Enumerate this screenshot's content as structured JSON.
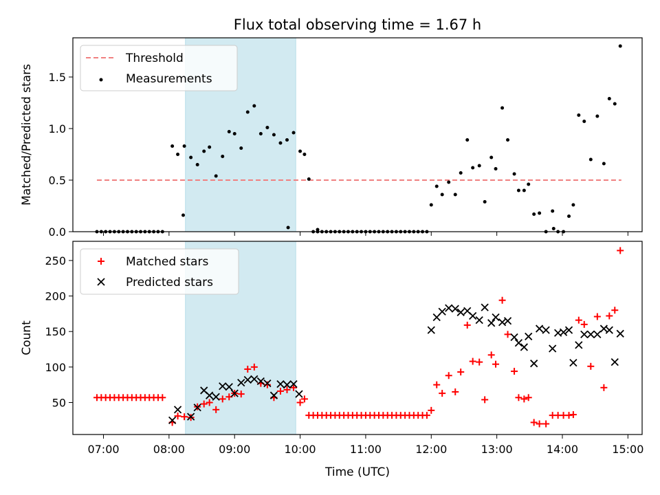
{
  "chart_data": [
    {
      "type": "scatter",
      "title": "Flux total observing time = 1.67 h",
      "xlabel": "",
      "ylabel": "Matched/Predicted stars",
      "xlim": [
        "06:32",
        "15:13"
      ],
      "ylim": [
        0,
        1.88
      ],
      "yticks": [
        0.0,
        0.5,
        1.0,
        1.5
      ],
      "yticklabels": [
        "0.0",
        "0.5",
        "1.0",
        "1.5"
      ],
      "xticks": [
        "07:00",
        "08:00",
        "09:00",
        "10:00",
        "11:00",
        "12:00",
        "13:00",
        "14:00",
        "15:00"
      ],
      "legend_position": "top-left",
      "shaded_span": {
        "start": "08:15",
        "end": "09:56",
        "color": "#add8e6"
      },
      "series": [
        {
          "name": "Threshold",
          "kind": "dashed-line",
          "color": "#f08080",
          "x": [
            "06:54",
            "14:54"
          ],
          "y": [
            0.5,
            0.5
          ]
        },
        {
          "name": "Measurements",
          "kind": "points",
          "color": "#000000",
          "x": [
            "06:54",
            "06:58",
            "07:02",
            "07:06",
            "07:10",
            "07:14",
            "07:18",
            "07:22",
            "07:26",
            "07:30",
            "07:34",
            "07:38",
            "07:42",
            "07:46",
            "07:50",
            "07:54",
            "08:03",
            "08:08",
            "08:14",
            "08:20",
            "08:26",
            "08:32",
            "08:37",
            "08:43",
            "08:49",
            "08:55",
            "09:00",
            "09:06",
            "09:12",
            "09:18",
            "09:24",
            "09:30",
            "09:36",
            "09:42",
            "09:48",
            "09:54",
            "10:00",
            "10:04",
            "10:08",
            "10:12",
            "10:16",
            "10:20",
            "10:24",
            "10:28",
            "10:32",
            "10:36",
            "10:40",
            "10:44",
            "10:48",
            "10:52",
            "10:56",
            "11:00",
            "11:04",
            "11:08",
            "11:12",
            "11:16",
            "11:20",
            "11:24",
            "11:28",
            "11:32",
            "11:36",
            "11:40",
            "11:44",
            "11:48",
            "11:52",
            "11:56",
            "12:00",
            "12:05",
            "12:10",
            "12:16",
            "12:22",
            "12:27",
            "12:33",
            "12:38",
            "12:44",
            "12:49",
            "12:55",
            "12:59",
            "13:05",
            "13:10",
            "13:16",
            "13:20",
            "13:25",
            "13:29",
            "13:34",
            "13:39",
            "13:45",
            "13:51",
            "13:56",
            "14:01",
            "14:06",
            "14:10",
            "14:15",
            "14:20",
            "14:26",
            "14:32",
            "14:38",
            "14:43",
            "14:48",
            "14:53",
            "08:13",
            "09:49",
            "10:16",
            "13:52"
          ],
          "y": [
            0,
            0,
            0,
            0,
            0,
            0,
            0,
            0,
            0,
            0,
            0,
            0,
            0,
            0,
            0,
            0,
            0.83,
            0.75,
            0.83,
            0.72,
            0.65,
            0.78,
            0.82,
            0.54,
            0.73,
            0.97,
            0.95,
            0.81,
            1.16,
            1.22,
            0.95,
            1.01,
            0.94,
            0.86,
            0.89,
            0.96,
            0.78,
            0.75,
            0.51,
            0,
            0,
            0,
            0,
            0,
            0,
            0,
            0,
            0,
            0,
            0,
            0,
            0,
            0,
            0,
            0,
            0,
            0,
            0,
            0,
            0,
            0,
            0,
            0,
            0,
            0,
            0,
            0.26,
            0.44,
            0.36,
            0.48,
            0.36,
            0.57,
            0.89,
            0.62,
            0.64,
            0.29,
            0.72,
            0.61,
            1.2,
            0.89,
            0.56,
            0.4,
            0.4,
            0.46,
            0.17,
            0.18,
            0,
            0.2,
            0,
            0,
            0.15,
            0.26,
            1.13,
            1.07,
            0.7,
            1.12,
            0.66,
            1.29,
            1.24,
            1.8,
            0.16,
            0.04,
            0.02,
            0.03
          ]
        }
      ]
    },
    {
      "type": "scatter",
      "title": "",
      "xlabel": "Time (UTC)",
      "ylabel": "Count",
      "xlim": [
        "06:32",
        "15:13"
      ],
      "ylim": [
        5,
        277
      ],
      "yticks": [
        50,
        100,
        150,
        200,
        250
      ],
      "yticklabels": [
        "50",
        "100",
        "150",
        "200",
        "250"
      ],
      "xticks": [
        "07:00",
        "08:00",
        "09:00",
        "10:00",
        "11:00",
        "12:00",
        "13:00",
        "14:00",
        "15:00"
      ],
      "xticklabels": [
        "07:00",
        "08:00",
        "09:00",
        "10:00",
        "11:00",
        "12:00",
        "13:00",
        "14:00",
        "15:00"
      ],
      "legend_position": "top-left",
      "shaded_span": {
        "start": "08:15",
        "end": "09:56",
        "color": "#add8e6"
      },
      "series": [
        {
          "name": "Matched stars",
          "kind": "plus",
          "color": "#ff0000",
          "x": [
            "06:54",
            "06:58",
            "07:02",
            "07:06",
            "07:10",
            "07:14",
            "07:18",
            "07:22",
            "07:26",
            "07:30",
            "07:34",
            "07:38",
            "07:42",
            "07:46",
            "07:50",
            "07:54",
            "08:03",
            "08:08",
            "08:14",
            "08:20",
            "08:26",
            "08:32",
            "08:37",
            "08:43",
            "08:49",
            "08:55",
            "09:00",
            "09:06",
            "09:12",
            "09:18",
            "09:24",
            "09:30",
            "09:36",
            "09:42",
            "09:48",
            "09:54",
            "10:00",
            "10:04",
            "10:08",
            "10:12",
            "10:16",
            "10:20",
            "10:24",
            "10:28",
            "10:32",
            "10:36",
            "10:40",
            "10:44",
            "10:48",
            "10:52",
            "10:56",
            "11:00",
            "11:04",
            "11:08",
            "11:12",
            "11:16",
            "11:20",
            "11:24",
            "11:28",
            "11:32",
            "11:36",
            "11:40",
            "11:44",
            "11:48",
            "11:52",
            "11:56",
            "12:00",
            "12:05",
            "12:10",
            "12:16",
            "12:22",
            "12:27",
            "12:33",
            "12:38",
            "12:44",
            "12:49",
            "12:55",
            "12:59",
            "13:05",
            "13:10",
            "13:16",
            "13:20",
            "13:25",
            "13:29",
            "13:34",
            "13:39",
            "13:45",
            "13:51",
            "13:56",
            "14:01",
            "14:06",
            "14:10",
            "14:15",
            "14:20",
            "14:26",
            "14:32",
            "14:38",
            "14:43",
            "14:48",
            "14:53"
          ],
          "y": [
            57,
            57,
            57,
            57,
            57,
            57,
            57,
            57,
            57,
            57,
            57,
            57,
            57,
            57,
            57,
            57,
            22,
            31,
            30,
            29,
            44,
            48,
            50,
            40,
            55,
            58,
            63,
            62,
            97,
            100,
            77,
            75,
            57,
            66,
            68,
            71,
            50,
            55,
            32,
            32,
            32,
            32,
            32,
            32,
            32,
            32,
            32,
            32,
            32,
            32,
            32,
            32,
            32,
            32,
            32,
            32,
            32,
            32,
            32,
            32,
            32,
            32,
            32,
            32,
            32,
            32,
            39,
            75,
            63,
            88,
            65,
            93,
            159,
            108,
            107,
            54,
            117,
            104,
            194,
            146,
            94,
            57,
            55,
            57,
            22,
            20,
            20,
            32,
            32,
            32,
            32,
            33,
            166,
            160,
            101,
            171,
            71,
            172,
            180,
            264
          ]
        },
        {
          "name": "Predicted stars",
          "kind": "x",
          "color": "#000000",
          "x": [
            "08:03",
            "08:08",
            "08:20",
            "08:26",
            "08:32",
            "08:37",
            "08:43",
            "08:49",
            "08:55",
            "09:00",
            "09:06",
            "09:12",
            "09:18",
            "09:24",
            "09:30",
            "09:36",
            "09:42",
            "09:48",
            "09:54",
            "09:59",
            "12:00",
            "12:05",
            "12:10",
            "12:16",
            "12:22",
            "12:27",
            "12:33",
            "12:38",
            "12:44",
            "12:49",
            "12:55",
            "12:59",
            "13:05",
            "13:10",
            "13:16",
            "13:20",
            "13:25",
            "13:29",
            "13:34",
            "13:39",
            "13:45",
            "13:51",
            "13:56",
            "14:01",
            "14:06",
            "14:10",
            "14:15",
            "14:20",
            "14:26",
            "14:32",
            "14:38",
            "14:43",
            "14:48",
            "14:53"
          ],
          "y": [
            25,
            40,
            30,
            43,
            67,
            60,
            58,
            73,
            72,
            63,
            78,
            82,
            83,
            80,
            77,
            60,
            76,
            75,
            76,
            62,
            152,
            170,
            178,
            183,
            182,
            177,
            179,
            172,
            166,
            184,
            162,
            170,
            163,
            165,
            142,
            134,
            128,
            143,
            105,
            154,
            152,
            126,
            148,
            149,
            152,
            106,
            131,
            146,
            146,
            146,
            154,
            152,
            107,
            147
          ]
        }
      ]
    }
  ]
}
